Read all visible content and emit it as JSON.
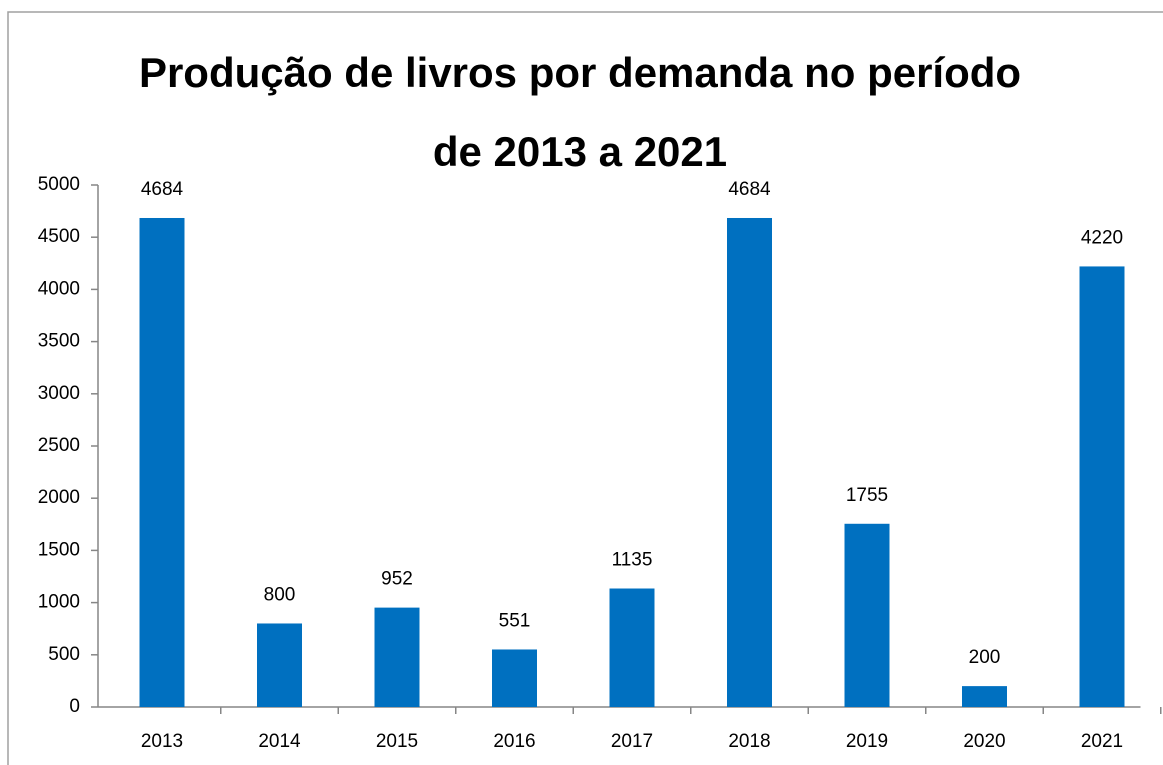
{
  "chart_data": {
    "type": "bar",
    "title": [
      "Produção de livros por demanda no período",
      "de 2013 a 2021"
    ],
    "categories": [
      "2013",
      "2014",
      "2015",
      "2016",
      "2017",
      "2018",
      "2019",
      "2020",
      "2021"
    ],
    "values": [
      4684,
      800,
      952,
      551,
      1135,
      4684,
      1755,
      200,
      4220
    ],
    "color": "#0070c0",
    "ylim": [
      0,
      5000
    ],
    "yticks": [
      0,
      500,
      1000,
      1500,
      2000,
      2500,
      3000,
      3500,
      4000,
      4500,
      5000
    ],
    "grid": false
  }
}
